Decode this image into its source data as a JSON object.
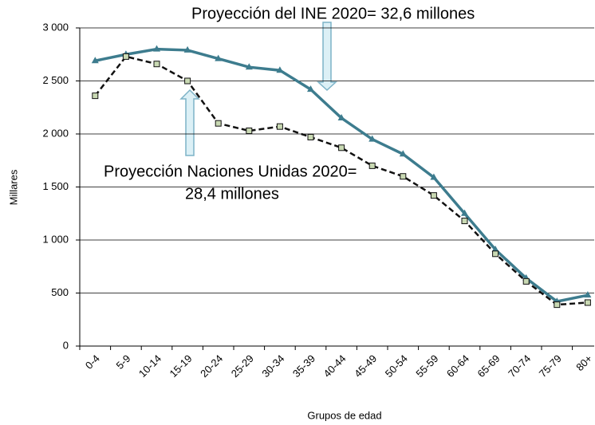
{
  "chart_data": {
    "type": "line",
    "y_label": "Millares",
    "x_label": "Grupos de edad",
    "annotations": [
      {
        "lines": [
          "Proyección del INE 2020= 32,6 millones"
        ]
      },
      {
        "lines": [
          "Proyección Naciones Unidas 2020=",
          "28,4 millones"
        ]
      }
    ],
    "categories": [
      "0-4",
      "5-9",
      "10-14",
      "15-19",
      "20-24",
      "25-29",
      "30-34",
      "35-39",
      "40-44",
      "45-49",
      "50-54",
      "55-59",
      "60-64",
      "65-69",
      "70-74",
      "75-79",
      "80+"
    ],
    "series": [
      {
        "color": "#3d7c8e",
        "line_style": "solid",
        "marker": "triangle",
        "values": [
          2690,
          2750,
          2800,
          2790,
          2710,
          2630,
          2600,
          2420,
          2150,
          1950,
          1810,
          1590,
          1250,
          910,
          640,
          420,
          480
        ]
      },
      {
        "color": "#111111",
        "line_style": "dashed",
        "marker": "square",
        "values": [
          2360,
          2730,
          2660,
          2500,
          2100,
          2030,
          2070,
          1970,
          1870,
          1700,
          1600,
          1420,
          1180,
          870,
          610,
          390,
          410
        ]
      }
    ],
    "ylim": [
      0,
      3000
    ],
    "yticks": [
      0,
      500,
      {
        "value": 1000,
        "label": "1 000"
      },
      {
        "value": 1500,
        "label": "1 500"
      },
      {
        "value": 2000,
        "label": "2 000"
      },
      {
        "value": 2500,
        "label": "2 500"
      },
      {
        "value": 3000,
        "label": "3 000"
      }
    ],
    "grid": true
  }
}
